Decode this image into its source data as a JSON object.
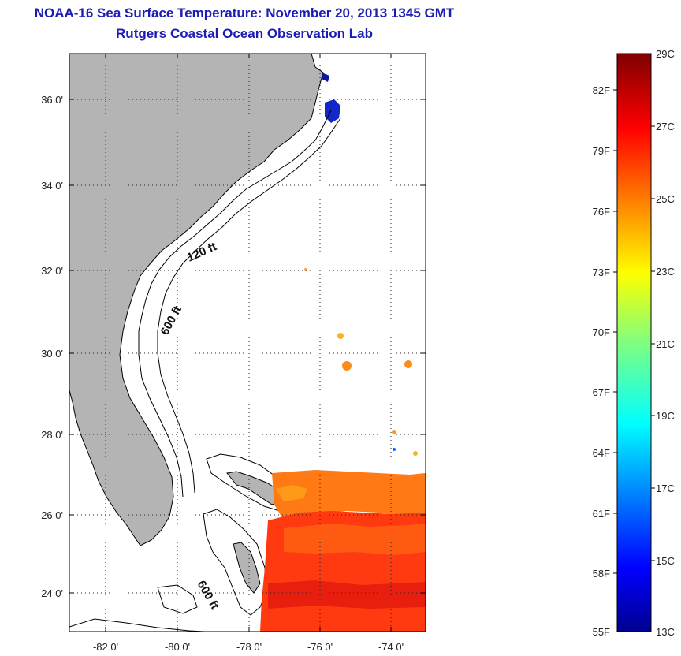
{
  "title": {
    "line1": "NOAA-16 Sea Surface Temperature:  November 20, 2013 1345 GMT",
    "line2": "Rutgers Coastal Ocean Observation Lab"
  },
  "map": {
    "lat_labels": [
      "36 0'",
      "34 0'",
      "32 0'",
      "30 0'",
      "28 0'",
      "26 0'",
      "24 0'"
    ],
    "lon_labels": [
      "-82 0'",
      "-80 0'",
      "-78 0'",
      "-76 0'",
      "-74 0'"
    ],
    "contour_labels": [
      "120 ft",
      "600 ft",
      "600 ft"
    ],
    "land_color": "#b4b4b4",
    "ocean_color": "#ffffff",
    "grid": "dotted"
  },
  "colorbar": {
    "fahrenheit_labels": [
      "82F",
      "79F",
      "76F",
      "73F",
      "70F",
      "67F",
      "64F",
      "61F",
      "58F",
      "55F"
    ],
    "celsius_labels": [
      "29C",
      "27C",
      "25C",
      "23C",
      "21C",
      "19C",
      "17C",
      "15C",
      "13C"
    ],
    "colormap": "jet",
    "range_c": [
      13,
      29
    ]
  }
}
